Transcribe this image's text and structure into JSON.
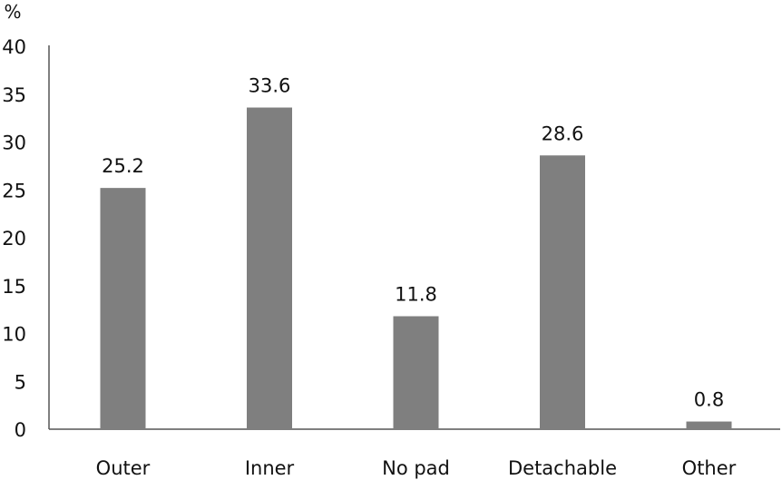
{
  "chart_data": {
    "type": "bar",
    "title": "",
    "xlabel": "",
    "ylabel": "%",
    "categories": [
      "Outer",
      "Inner",
      "No pad",
      "Detachable",
      "Other"
    ],
    "values": [
      25.2,
      33.6,
      11.8,
      28.6,
      0.8
    ],
    "data_labels": [
      "25.2",
      "33.6",
      "11.8",
      "28.6",
      "0.8"
    ],
    "ylim": [
      0,
      40
    ],
    "yticks": [
      0,
      5,
      10,
      15,
      20,
      25,
      30,
      35,
      40
    ],
    "grid": false,
    "legend": "none",
    "bar_color": "#7f7f7f"
  }
}
